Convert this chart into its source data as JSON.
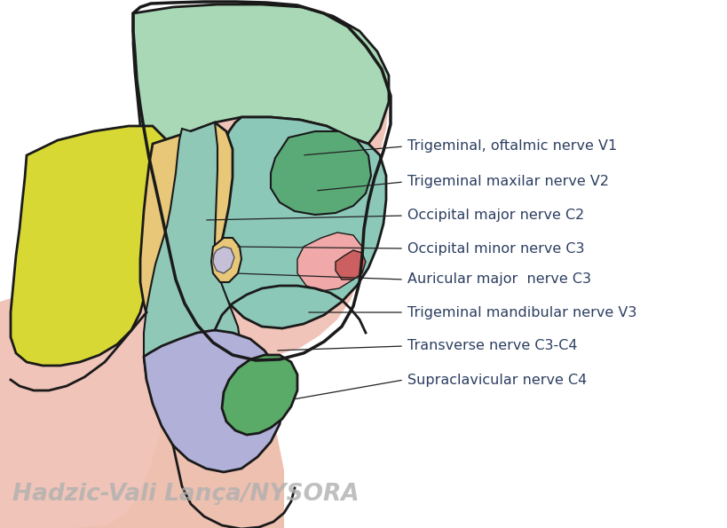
{
  "labels": [
    "Trigeminal, oftalmic nerve V1",
    "Trigeminal maxilar nerve V2",
    "Occipital major nerve C2",
    "Occipital minor nerve C3",
    "Auricular major  nerve C3",
    "Trigeminal mandibular nerve V3",
    "Transverse nerve C3-C4",
    "Supraclavicular nerve C4"
  ],
  "ann_data": [
    [
      340,
      175,
      455,
      165
    ],
    [
      355,
      215,
      455,
      205
    ],
    [
      230,
      248,
      455,
      243
    ],
    [
      265,
      278,
      455,
      280
    ],
    [
      265,
      308,
      455,
      315
    ],
    [
      345,
      352,
      455,
      352
    ],
    [
      310,
      395,
      455,
      390
    ],
    [
      330,
      450,
      455,
      428
    ]
  ],
  "watermark": "Hadzic-Vali Lança/NYSORA",
  "bg_color": "#ffffff",
  "label_color": "#2c3e60",
  "label_fontsize": 11.5,
  "watermark_color": "#b0b0b0",
  "skin_color": "#f0c4b8",
  "skin_body_color": "#edc0b0",
  "green_scalp": "#a8d8b5",
  "yellow_occiput": "#d8d835",
  "orange_behind_ear": "#e8c878",
  "teal_face": "#8cc8b8",
  "teal_neck": "#90c8b8",
  "green_eye_region": "#5aaa78",
  "pink_face": "#f0a8a8",
  "red_nose": "#cc6060",
  "purple_neck": "#b0b0d8",
  "green_lower_neck": "#5aaa68",
  "outline_color": "#1a1a1a"
}
